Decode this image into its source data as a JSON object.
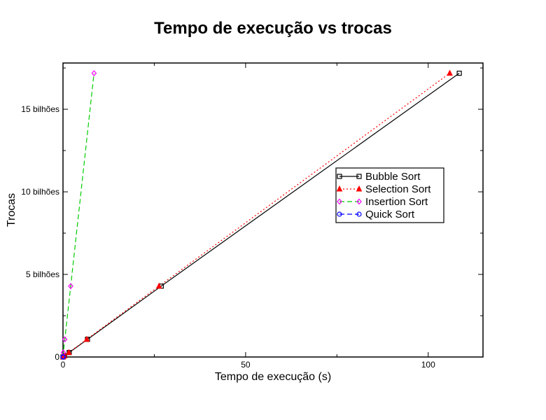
{
  "chart_data": {
    "type": "line",
    "title": "Tempo de execução vs trocas",
    "xlabel": "Tempo de execução (s)",
    "ylabel": "Trocas",
    "xlim": [
      0,
      115
    ],
    "ylim": [
      0,
      17.8
    ],
    "y_unit": "bilhões",
    "xticks": [
      0,
      50,
      100
    ],
    "xtick_labels": [
      "0",
      "50",
      "100"
    ],
    "yticks": [
      0,
      5,
      10,
      15
    ],
    "ytick_labels": [
      "0",
      "5 bilhões",
      "10 bilhões",
      "15 bilhões"
    ],
    "grid": false,
    "legend_position": "right",
    "series": [
      {
        "name": "Bubble Sort",
        "color": "#000000",
        "dash": "solid",
        "marker": "square",
        "x": [
          0,
          0.4,
          1.7,
          6.7,
          26.9,
          108.5
        ],
        "y": [
          0,
          0.07,
          0.27,
          1.07,
          4.29,
          17.18
        ]
      },
      {
        "name": "Selection Sort",
        "color": "#ff0000",
        "dash": "dotted",
        "marker": "triangle",
        "x": [
          0,
          0.4,
          1.6,
          6.5,
          26.3,
          105.9
        ],
        "y": [
          0,
          0.07,
          0.27,
          1.07,
          4.29,
          17.18
        ]
      },
      {
        "name": "Insertion Sort",
        "color": "#ff00ff",
        "line_color": "#00cc00",
        "dash": "dashed",
        "marker": "diamond",
        "x": [
          0,
          0.1,
          0.5,
          2.1,
          8.5
        ],
        "y": [
          0,
          0.27,
          1.07,
          4.29,
          17.18
        ]
      },
      {
        "name": "Quick Sort",
        "color": "#0000ff",
        "dash": "dashed",
        "marker": "circle",
        "x": [
          0,
          0.005,
          0.01,
          0.02,
          0.05
        ],
        "y": [
          0,
          0.0001,
          0.0003,
          0.0007,
          0.0012
        ]
      }
    ]
  }
}
